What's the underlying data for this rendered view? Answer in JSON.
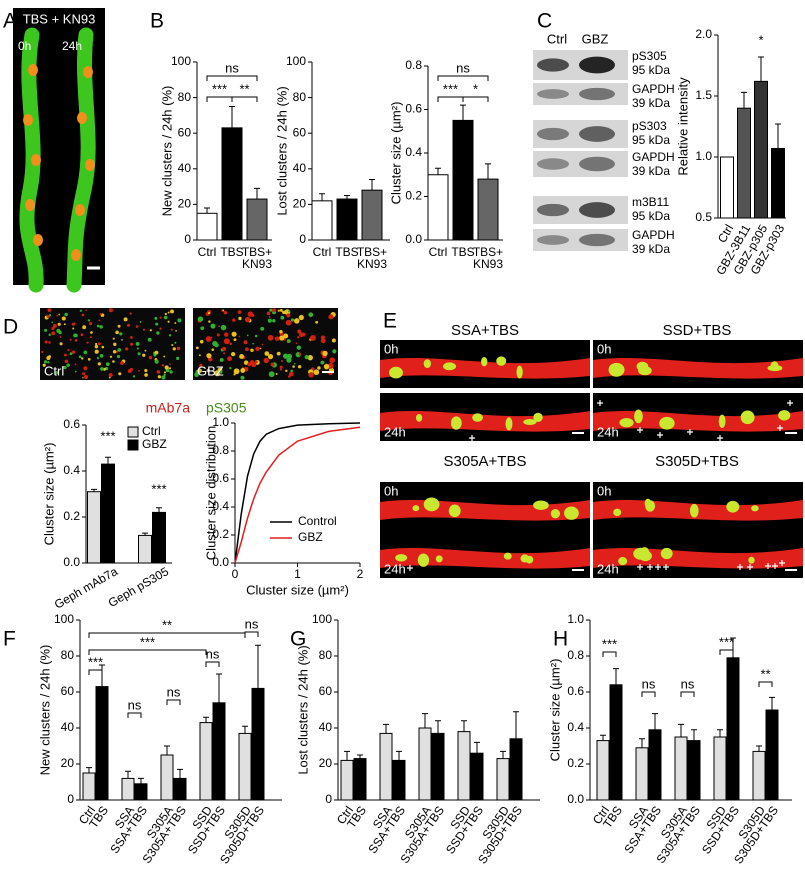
{
  "panel_letters": [
    "A",
    "B",
    "C",
    "D",
    "E",
    "F",
    "G",
    "H"
  ],
  "panel_A": {
    "title": "TBS + KN93",
    "times": [
      "0h",
      "24h"
    ]
  },
  "panel_C_blots": {
    "columns": [
      "Ctrl",
      "GBZ"
    ],
    "bands": [
      [
        "pS305",
        "95 kDa"
      ],
      [
        "GAPDH",
        "39 kDa"
      ],
      [
        "pS303",
        "95 kDa"
      ],
      [
        "GAPDH",
        "39 kDa"
      ],
      [
        "m3B11",
        "95 kDa"
      ],
      [
        "GAPDH",
        "39 kDa"
      ]
    ]
  },
  "panel_D_images": {
    "labels": [
      "Ctrl",
      "GBZ"
    ],
    "stains": [
      "mAb7a",
      "pS305"
    ]
  },
  "panel_E": {
    "conditions": [
      "SSA+TBS",
      "SSD+TBS",
      "S305A+TBS",
      "S305D+TBS"
    ],
    "times": [
      "0h",
      "24h"
    ]
  },
  "chart_data": [
    {
      "type": "bar",
      "y_label": "New clusters / 24h (%)",
      "categories": [
        "Ctrl",
        "TBS",
        "TBS+ KN93"
      ],
      "values": [
        15,
        63,
        23
      ],
      "errors": [
        3,
        12,
        6
      ],
      "colors": [
        "#ffffff",
        "#000000",
        "#666666"
      ],
      "ylim": [
        0,
        100
      ],
      "yticks": [
        0,
        20,
        40,
        60,
        80,
        100
      ],
      "annotations": [
        "ns",
        "***",
        "**"
      ]
    },
    {
      "type": "bar",
      "y_label": "Lost clusters / 24h (%)",
      "categories": [
        "Ctrl",
        "TBS",
        "TBS+ KN93"
      ],
      "values": [
        22,
        23,
        28
      ],
      "errors": [
        4,
        2,
        6
      ],
      "colors": [
        "#ffffff",
        "#000000",
        "#666666"
      ],
      "ylim": [
        0,
        100
      ],
      "yticks": [
        0,
        20,
        40,
        60,
        80,
        100
      ],
      "annotations": []
    },
    {
      "type": "bar",
      "y_label": "Cluster size (µm²)",
      "categories": [
        "Ctrl",
        "TBS",
        "TBS+ KN93"
      ],
      "values": [
        0.3,
        0.55,
        0.28
      ],
      "errors": [
        0.03,
        0.07,
        0.07
      ],
      "colors": [
        "#ffffff",
        "#000000",
        "#666666"
      ],
      "ylim": [
        0,
        0.8
      ],
      "yticks": [
        {
          "value": 0,
          "label": "0.0"
        },
        0.2,
        0.4,
        0.6,
        0.8
      ],
      "annotations": [
        "ns",
        "***",
        "*"
      ]
    },
    {
      "type": "bar",
      "y_label": "Relative intensity",
      "categories": [
        "Ctrl",
        "GBZ-3B11",
        "GBZ-p305",
        "GBZ-p303"
      ],
      "values": [
        1.0,
        1.4,
        1.62,
        1.07
      ],
      "errors": [
        0,
        0.13,
        0.2,
        0.2
      ],
      "colors": [
        "#ffffff",
        "#555555",
        "#333333",
        "#000000"
      ],
      "ylim": [
        0.5,
        2.0
      ],
      "yticks": [
        0.5,
        {
          "value": 1,
          "label": "1.0"
        },
        1.5,
        {
          "value": 2,
          "label": "2.0"
        }
      ],
      "annotations": [
        "*"
      ]
    },
    {
      "type": "bar",
      "y_label": "Cluster size (µm²)",
      "categories": [
        "Geph mAb7a",
        "Geph pS305"
      ],
      "series": [
        {
          "name": "Ctrl",
          "color": "#e0e0e0",
          "values": [
            0.31,
            0.12
          ],
          "errors": [
            0.01,
            0.01
          ]
        },
        {
          "name": "GBZ",
          "color": "#000000",
          "values": [
            0.43,
            0.22
          ],
          "errors": [
            0.03,
            0.02
          ]
        }
      ],
      "ylim": [
        0,
        0.6
      ],
      "yticks": [
        {
          "value": 0,
          "label": "0.0"
        },
        0.2,
        0.4,
        0.6
      ],
      "annotations": [
        "***",
        "***"
      ]
    },
    {
      "type": "line",
      "y_label": "Cluster size distribution",
      "x_label": "Cluster size (µm²)",
      "x": [
        0,
        0.1,
        0.2,
        0.3,
        0.4,
        0.5,
        0.7,
        1.0,
        1.5,
        2.0
      ],
      "series": [
        {
          "name": "Control",
          "color": "#000000",
          "values": [
            0,
            0.35,
            0.62,
            0.78,
            0.87,
            0.92,
            0.96,
            0.985,
            0.995,
            1.0
          ]
        },
        {
          "name": "GBZ",
          "color": "#e02020",
          "values": [
            0,
            0.15,
            0.32,
            0.46,
            0.57,
            0.65,
            0.77,
            0.87,
            0.94,
            0.97
          ]
        }
      ],
      "xlim": [
        0,
        2
      ],
      "xticks": [
        0,
        1,
        2
      ],
      "ylim": [
        0,
        1
      ],
      "yticks": [
        {
          "value": 0,
          "label": "0.0"
        },
        0.2,
        0.4,
        0.6,
        0.8,
        {
          "value": 1,
          "label": "1.0"
        }
      ]
    },
    {
      "type": "bar",
      "y_label": "New clusters / 24h (%)",
      "categories": [
        "Ctrl",
        "TBS",
        "SSA",
        "SSA+TBS",
        "S305A",
        "S305A+TBS",
        "SSD",
        "SSD+TBS",
        "S305D",
        "S305D+TBS"
      ],
      "values": [
        15,
        63,
        12,
        9,
        25,
        12,
        43,
        54,
        37,
        62
      ],
      "errors": [
        3,
        12,
        4,
        3,
        5,
        5,
        3,
        16,
        4,
        24
      ],
      "colors": [
        "#e0e0e0",
        "#000000",
        "#e0e0e0",
        "#000000",
        "#e0e0e0",
        "#000000",
        "#e0e0e0",
        "#000000",
        "#e0e0e0",
        "#000000"
      ],
      "ylim": [
        0,
        100
      ],
      "yticks": [
        0,
        20,
        40,
        60,
        80,
        100
      ],
      "annotations": [
        "**",
        "***",
        "***",
        "ns",
        "ns",
        "ns",
        "ns"
      ]
    },
    {
      "type": "bar",
      "y_label": "Lost clusters / 24h (%)",
      "categories": [
        "Ctrl",
        "TBS",
        "SSA",
        "SSA+TBS",
        "S305A",
        "S305A+TBS",
        "SSD",
        "SSD+TBS",
        "S305D",
        "S305D+TBS"
      ],
      "values": [
        22,
        23,
        37,
        22,
        40,
        37,
        38,
        26,
        23,
        34
      ],
      "errors": [
        5,
        2,
        5,
        5,
        8,
        7,
        6,
        6,
        4,
        15
      ],
      "colors": [
        "#e0e0e0",
        "#000000",
        "#e0e0e0",
        "#000000",
        "#e0e0e0",
        "#000000",
        "#e0e0e0",
        "#000000",
        "#e0e0e0",
        "#000000"
      ],
      "ylim": [
        0,
        100
      ],
      "yticks": [
        0,
        20,
        40,
        60,
        80,
        100
      ],
      "annotations": []
    },
    {
      "type": "bar",
      "y_label": "Cluster size (µm²)",
      "categories": [
        "Ctrl",
        "TBS",
        "SSA",
        "SSA+TBS",
        "S305A",
        "S305A+TBS",
        "SSD",
        "SSD+TBS",
        "S305D",
        "S305D+TBS"
      ],
      "values": [
        0.33,
        0.64,
        0.29,
        0.39,
        0.35,
        0.33,
        0.35,
        0.79,
        0.27,
        0.5
      ],
      "errors": [
        0.03,
        0.09,
        0.05,
        0.09,
        0.07,
        0.06,
        0.04,
        0.11,
        0.03,
        0.07
      ],
      "colors": [
        "#e0e0e0",
        "#000000",
        "#e0e0e0",
        "#000000",
        "#e0e0e0",
        "#000000",
        "#e0e0e0",
        "#000000",
        "#e0e0e0",
        "#000000"
      ],
      "ylim": [
        0,
        1
      ],
      "yticks": [
        {
          "value": 0,
          "label": "0.0"
        },
        0.2,
        0.4,
        0.6,
        0.8,
        {
          "value": 1,
          "label": "1.0"
        }
      ],
      "annotations": [
        "***",
        "ns",
        "ns",
        "***",
        "**"
      ]
    }
  ]
}
